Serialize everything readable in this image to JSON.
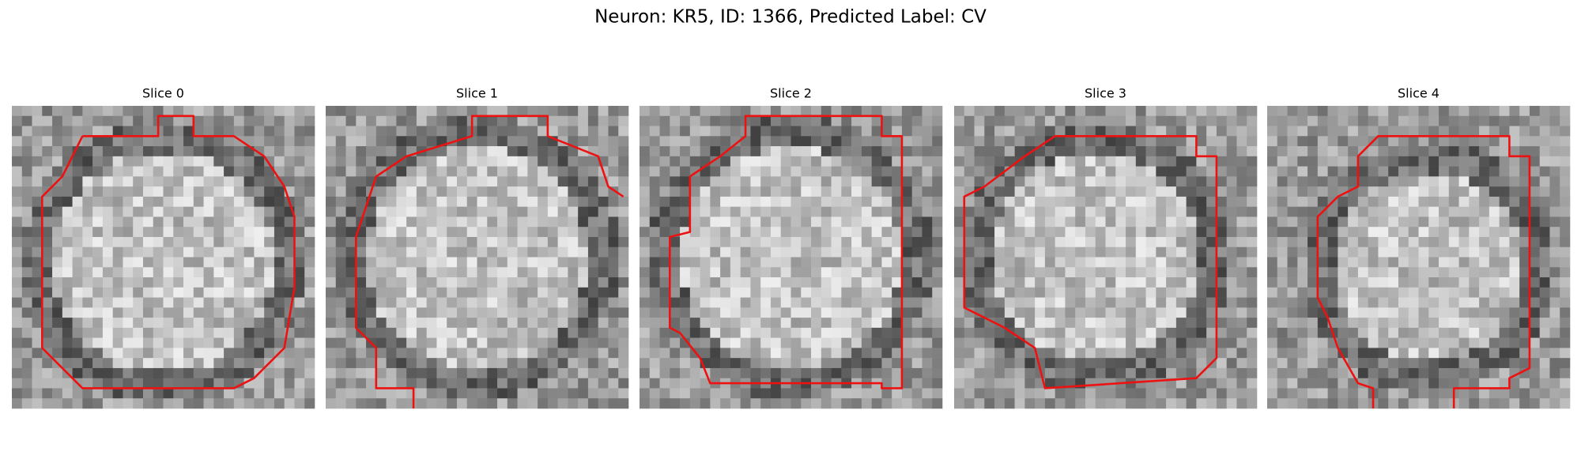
{
  "title": "Neuron: KR5, ID: 1366, Predicted Label: CV",
  "panels": [
    {
      "title": "Slice 0"
    },
    {
      "title": "Slice 1"
    },
    {
      "title": "Slice 2"
    },
    {
      "title": "Slice 3"
    },
    {
      "title": "Slice 4"
    }
  ]
}
